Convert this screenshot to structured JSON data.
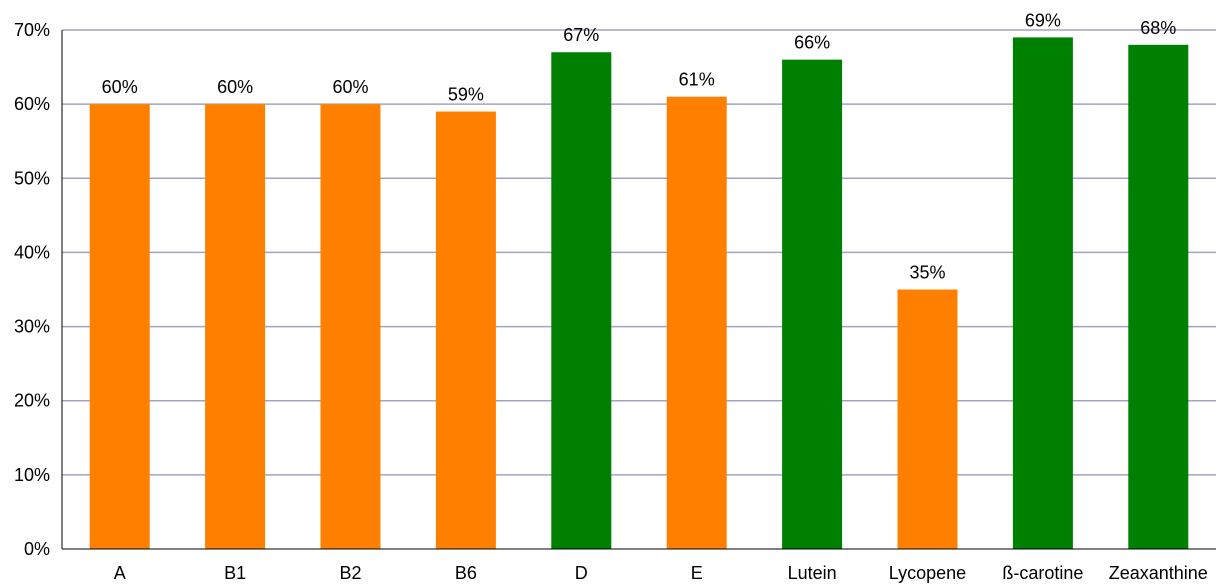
{
  "chart_data": {
    "type": "bar",
    "categories": [
      "A",
      "B1",
      "B2",
      "B6",
      "D",
      "E",
      "Lutein",
      "Lycopene",
      "ß-carotine",
      "Zeaxanthine"
    ],
    "values": [
      60,
      60,
      60,
      59,
      67,
      61,
      66,
      35,
      69,
      68
    ],
    "data_labels": [
      "60%",
      "60%",
      "60%",
      "59%",
      "67%",
      "61%",
      "66%",
      "35%",
      "69%",
      "68%"
    ],
    "bar_colors": [
      "#ff8000",
      "#ff8000",
      "#ff8000",
      "#ff8000",
      "#008000",
      "#ff8000",
      "#008000",
      "#ff8000",
      "#008000",
      "#008000"
    ],
    "ylim": [
      0,
      70
    ],
    "y_ticks": [
      0,
      10,
      20,
      30,
      40,
      50,
      60,
      70
    ],
    "y_tick_labels": [
      "0%",
      "10%",
      "20%",
      "30%",
      "40%",
      "50%",
      "60%",
      "70%"
    ],
    "grid": true,
    "grid_color": "#a3a3c2",
    "legend": "none",
    "title": "",
    "xlabel": "",
    "ylabel": ""
  }
}
